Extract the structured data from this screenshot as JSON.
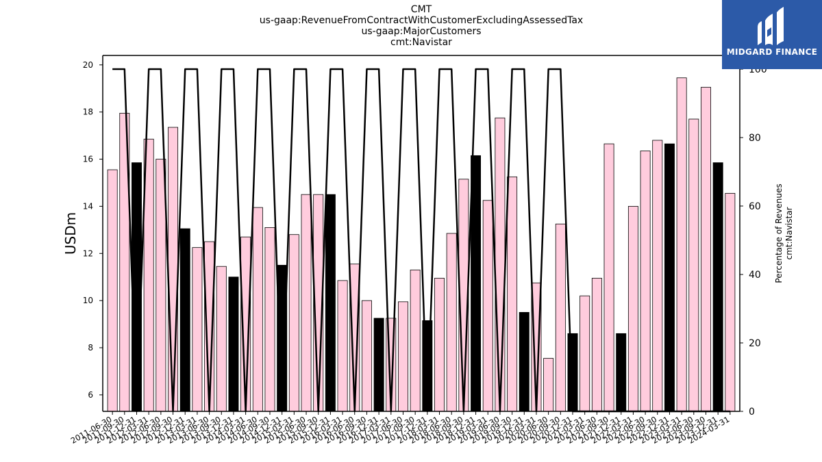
{
  "title_lines": [
    "CMT",
    "us-gaap:RevenueFromContractWithCustomerExcludingAssessedTax",
    "us-gaap:MajorCustomers",
    "cmt:Navistar"
  ],
  "logo": {
    "text": "MIDGARD FINANCE",
    "icon": "midgard-logo-icon",
    "bg_color": "#2c5aa8"
  },
  "chart_data": {
    "type": "bar",
    "categories": [
      "2011-06-30",
      "2011-09-30",
      "2011-12-31",
      "2012-03-31",
      "2012-06-30",
      "2012-09-30",
      "2012-12-31",
      "2013-03-31",
      "2013-06-30",
      "2013-09-30",
      "2013-12-31",
      "2014-03-31",
      "2014-06-30",
      "2014-09-30",
      "2014-12-31",
      "2015-03-31",
      "2015-06-30",
      "2015-09-30",
      "2015-12-31",
      "2016-03-31",
      "2016-06-30",
      "2016-09-30",
      "2016-12-31",
      "2017-03-31",
      "2017-06-30",
      "2017-09-30",
      "2017-12-31",
      "2018-03-31",
      "2018-06-30",
      "2018-09-30",
      "2018-12-31",
      "2019-03-31",
      "2019-06-30",
      "2019-09-30",
      "2019-12-31",
      "2020-03-31",
      "2020-06-30",
      "2020-09-30",
      "2020-12-31",
      "2021-03-31",
      "2021-06-30",
      "2021-09-30",
      "2021-12-31",
      "2022-03-31",
      "2022-06-30",
      "2022-09-30",
      "2022-12-31",
      "2023-03-31",
      "2023-06-30",
      "2023-09-30",
      "2023-12-31",
      "2024-03-31"
    ],
    "tick_labels": [
      "2011-06-30",
      "2011-09-30",
      "2011-12-31",
      "2012-03-31",
      "2012-06-30",
      "2012-09-30",
      "2012-12-31",
      "2013-03-31",
      "2013-06-30",
      "2013-09-30",
      "2013-12-31",
      "2014-03-31",
      "2014-06-30",
      "2014-09-30",
      "2014-12-31",
      "2015-03-31",
      "2015-06-30",
      "2015-09-30",
      "2015-12-31",
      "2016-03-31",
      "2016-06-30",
      "2016-09-30",
      "2016-12-31",
      "2017-03-31",
      "2017-06-30",
      "2017-09-30",
      "2017-12-31",
      "2018-03-31",
      "2018-06-30",
      "2018-09-30",
      "2018-12-31",
      "2019-03-31",
      "2019-06-30",
      "2019-09-30",
      "2019-12-31",
      "2020-03-31",
      "2020-06-30",
      "2020-09-30",
      "2020-12-31",
      "2021-03-31",
      "2021-06-30",
      "2021-09-30",
      "2021-12-31",
      "2022-03-31",
      "2022-06-30",
      "2022-09-30",
      "2022-12-31",
      "2023-03-31",
      "2023-06-30",
      "2023-09-30",
      "2023-12-31",
      "2024-03-31"
    ],
    "series": [
      {
        "type": "bar",
        "axis": "left",
        "values": [
          15.55,
          17.95,
          15.85,
          16.85,
          16.0,
          17.35,
          13.05,
          12.25,
          12.5,
          11.45,
          11.0,
          12.7,
          13.95,
          13.1,
          11.5,
          12.8,
          14.5,
          14.5,
          14.5,
          10.85,
          11.55,
          10.0,
          9.25,
          9.25,
          9.95,
          11.3,
          9.15,
          10.95,
          12.85,
          15.15,
          16.15,
          14.25,
          17.75,
          15.25,
          9.5,
          10.75,
          7.55,
          13.25,
          8.6,
          10.2,
          10.95,
          16.65,
          8.6,
          14.0,
          16.35,
          16.8,
          16.65,
          19.45,
          17.7,
          19.05,
          15.85,
          14.55
        ],
        "highlight": [
          false,
          false,
          true,
          false,
          false,
          false,
          true,
          false,
          false,
          false,
          true,
          false,
          false,
          false,
          true,
          false,
          false,
          false,
          true,
          false,
          false,
          false,
          true,
          false,
          false,
          false,
          true,
          false,
          false,
          false,
          true,
          false,
          false,
          false,
          true,
          false,
          false,
          false,
          true,
          false,
          false,
          false,
          true,
          false,
          false,
          false,
          true,
          false,
          false,
          false,
          true,
          false
        ]
      },
      {
        "type": "line",
        "axis": "right",
        "values": [
          100,
          100,
          0,
          100,
          100,
          0,
          100,
          100,
          0,
          100,
          100,
          0,
          100,
          100,
          0,
          100,
          100,
          0,
          100,
          100,
          0,
          100,
          100,
          0,
          100,
          100,
          0,
          100,
          100,
          0,
          100,
          100,
          0,
          100,
          100,
          0,
          100,
          100,
          0,
          0,
          0,
          0,
          0,
          0,
          0,
          0,
          0,
          0,
          0,
          0,
          0,
          0
        ]
      }
    ],
    "ylabel": "USDm",
    "y2label_lines": [
      "Percentage of Revenues",
      "cmt:Navistar"
    ],
    "ylim": [
      5.3,
      20.4
    ],
    "y2lim": [
      0,
      104
    ],
    "yticks": [
      6,
      8,
      10,
      12,
      14,
      16,
      18,
      20
    ],
    "y2ticks": [
      0,
      20,
      40,
      60,
      80,
      100
    ],
    "colors": {
      "bar": "#ffccdd",
      "highlight_bar": "#000000",
      "bar_edge": "#000000",
      "line": "#000000"
    },
    "grid": false,
    "legend": "none"
  }
}
